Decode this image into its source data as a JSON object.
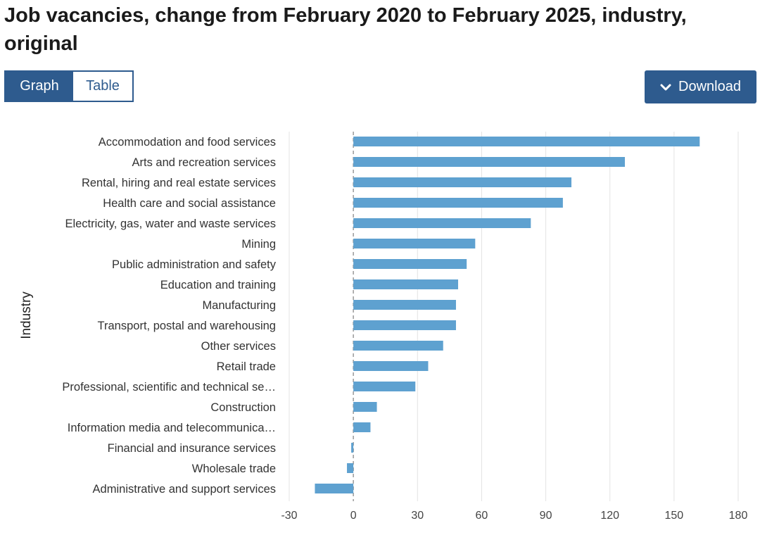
{
  "title": "Job vacancies, change from February 2020 to February 2025, industry, original",
  "controls": {
    "graph_label": "Graph",
    "table_label": "Table",
    "download_label": "Download"
  },
  "colors": {
    "bar": "#5ea1d0",
    "primary": "#2e5b8e",
    "grid": "#e3e3e3",
    "zero_line": "#999999"
  },
  "chart_data": {
    "type": "bar",
    "orientation": "horizontal",
    "title": "Job vacancies, change from February 2020 to February 2025, industry, original",
    "ylabel": "Industry",
    "xlabel": "",
    "xlim": [
      -30,
      180
    ],
    "xticks": [
      "-30",
      "0",
      "30",
      "60",
      "90",
      "120",
      "150",
      "180"
    ],
    "grid": true,
    "categories": [
      "Accommodation and food services",
      "Arts and recreation services",
      "Rental, hiring and real estate services",
      "Health care and social assistance",
      "Electricity, gas, water and waste services",
      "Mining",
      "Public administration and safety",
      "Education and training",
      "Manufacturing",
      "Transport, postal and warehousing",
      "Other services",
      "Retail trade",
      "Professional, scientific and technical se…",
      "Construction",
      "Information media and telecommunica…",
      "Financial and insurance services",
      "Wholesale trade",
      "Administrative and support services"
    ],
    "values": [
      162,
      127,
      102,
      98,
      83,
      57,
      53,
      49,
      48,
      48,
      42,
      35,
      29,
      11,
      8,
      -1,
      -3,
      -18
    ]
  }
}
